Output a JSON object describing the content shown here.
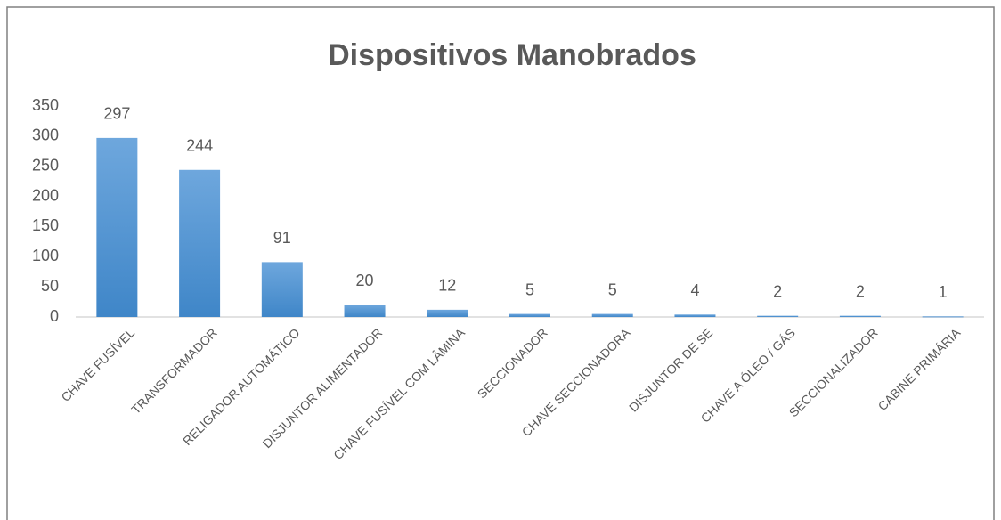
{
  "chart_data": {
    "type": "bar",
    "title": "Dispositivos Manobrados",
    "categories": [
      "CHAVE FUSÍVEL",
      "TRANSFORMADOR",
      "RELIGADOR AUTOMÁTICO",
      "DISJUNTOR ALIMENTADOR",
      "CHAVE FUSÍVEL COM LÂMINA",
      "SECCIONADOR",
      "CHAVE SECCIONADORA",
      "DISJUNTOR DE SE",
      "CHAVE A ÓLEO / GÁS",
      "SECCIONALIZADOR",
      "CABINE PRIMÁRIA"
    ],
    "values": [
      297,
      244,
      91,
      20,
      12,
      5,
      5,
      4,
      2,
      2,
      1
    ],
    "color": "#5b9bd5",
    "ylim": [
      0,
      350
    ],
    "yticks": [
      0,
      50,
      100,
      150,
      200,
      250,
      300,
      350
    ],
    "grid": false
  }
}
